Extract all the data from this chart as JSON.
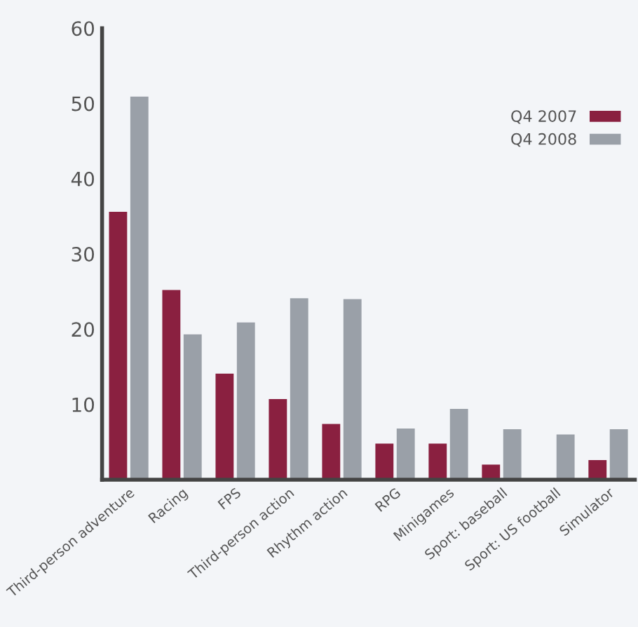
{
  "chart_data": {
    "type": "bar",
    "categories": [
      "Third-person adventure",
      "Racing",
      "FPS",
      "Third-person action",
      "Rhythm action",
      "RPG",
      "Minigames",
      "Sport: baseball",
      "Sport: US football",
      "Simulator"
    ],
    "series": [
      {
        "name": "Q4 2007",
        "color": "#8a2040",
        "values": [
          35.6,
          25.2,
          14.1,
          10.7,
          7.4,
          4.8,
          4.8,
          2.0,
          null,
          2.6
        ]
      },
      {
        "name": "Q4 2008",
        "color": "#9aa0a8",
        "values": [
          50.9,
          19.3,
          20.9,
          24.1,
          24.0,
          6.8,
          9.4,
          6.7,
          6.0,
          6.7
        ]
      }
    ],
    "ylim": [
      0,
      60
    ],
    "yticks": [
      10,
      20,
      30,
      40,
      50,
      60
    ],
    "grid": false,
    "legend": "top right"
  }
}
